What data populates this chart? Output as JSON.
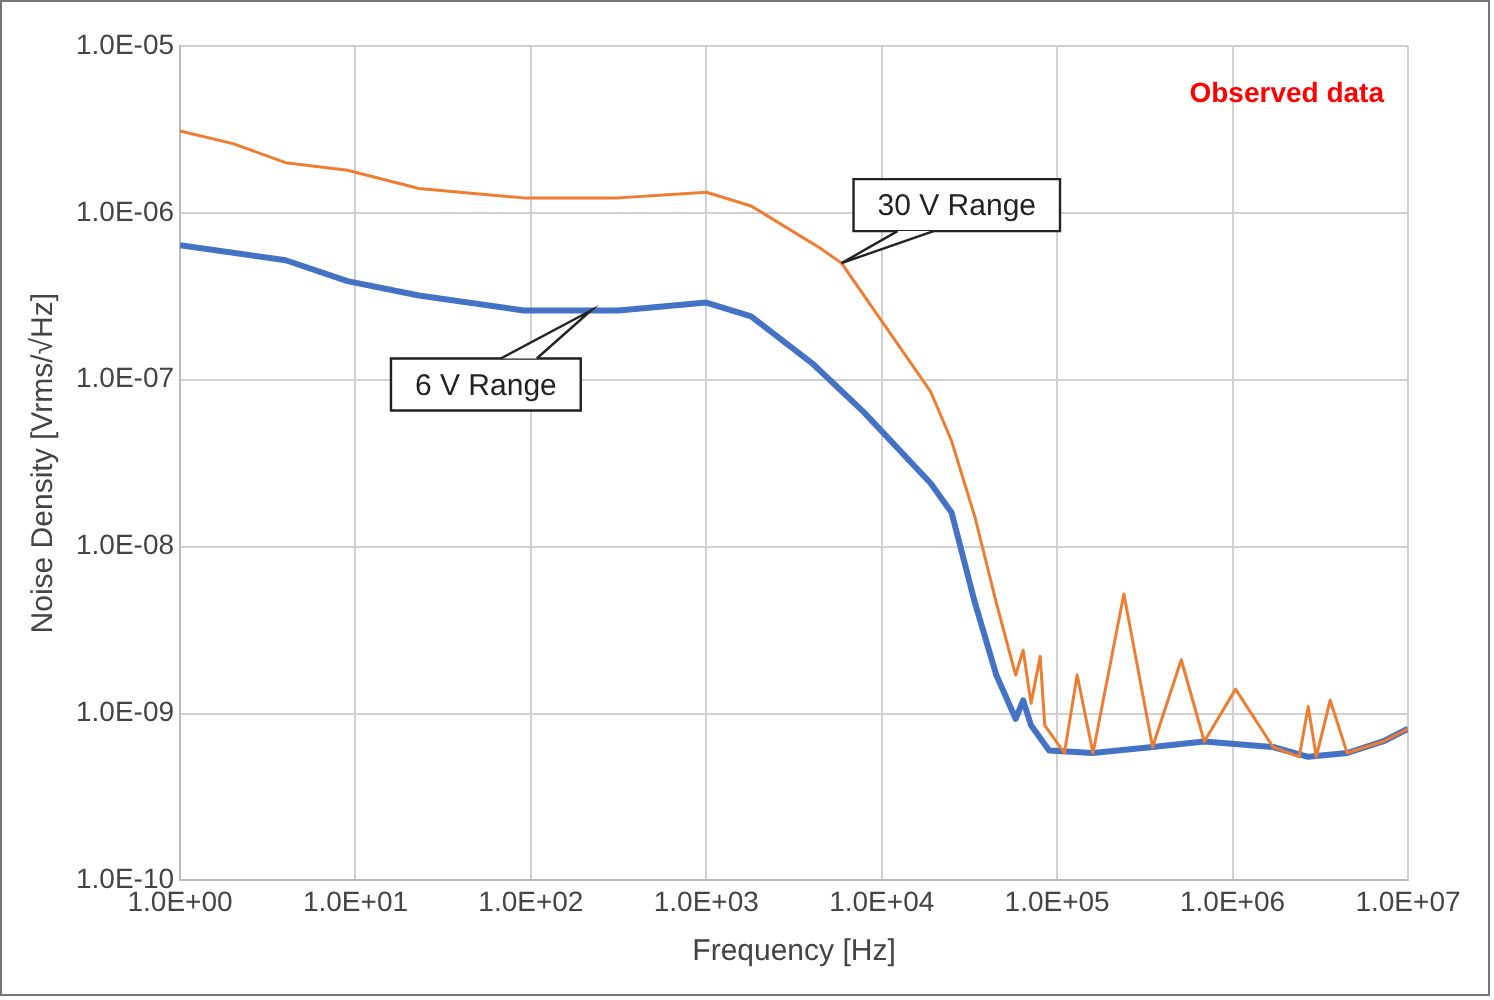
{
  "chart_data": {
    "type": "line",
    "xlabel": "Frequency [Hz]",
    "ylabel": "Noise Density [Vrms/√Hz]",
    "log": "xy",
    "grid": true,
    "legend": false,
    "marker": "none",
    "line_style": "solid",
    "xlim": [
      1,
      10000000
    ],
    "ylim": [
      1e-10,
      1e-05
    ],
    "xticks": [
      {
        "value": 1,
        "label": "1.0E+00"
      },
      {
        "value": 10,
        "label": "1.0E+01"
      },
      {
        "value": 100,
        "label": "1.0E+02"
      },
      {
        "value": 1000,
        "label": "1.0E+03"
      },
      {
        "value": 10000,
        "label": "1.0E+04"
      },
      {
        "value": 100000,
        "label": "1.0E+05"
      },
      {
        "value": 1000000,
        "label": "1.0E+06"
      },
      {
        "value": 10000000,
        "label": "1.0E+07"
      }
    ],
    "yticks": [
      {
        "value": 1e-10,
        "label": "1.0E-10"
      },
      {
        "value": 1e-09,
        "label": "1.0E-09"
      },
      {
        "value": 1e-08,
        "label": "1.0E-08"
      },
      {
        "value": 1e-07,
        "label": "1.0E-07"
      },
      {
        "value": 1e-06,
        "label": "1.0E-06"
      },
      {
        "value": 1e-05,
        "label": "1.0E-05"
      }
    ],
    "series": [
      {
        "color": "#ed7d31",
        "x": [
          1,
          2,
          4,
          9,
          23,
          91,
          316,
          1000,
          1800,
          4400,
          5900,
          19000,
          25000,
          34000,
          45000,
          58000,
          64000,
          71000,
          80000,
          85000,
          110000,
          130000,
          160000,
          240000,
          350000,
          510000,
          690000,
          1040000,
          1700000,
          2400000,
          2700000,
          3000000,
          3600000,
          4500000,
          7200000,
          10000000
        ],
        "values": [
          3.1e-06,
          2.6e-06,
          2e-06,
          1.8e-06,
          1.4e-06,
          1.23e-06,
          1.23e-06,
          1.33e-06,
          1.1e-06,
          6.2e-07,
          5e-07,
          8.5e-08,
          4.3e-08,
          1.5e-08,
          4.6e-09,
          1.7e-09,
          2.4e-09,
          1.15e-09,
          2.2e-09,
          8.5e-10,
          5.8e-10,
          1.7e-09,
          5.8e-10,
          5.2e-09,
          6.3e-10,
          2.1e-09,
          6.8e-10,
          1.4e-09,
          6.3e-10,
          5.5e-10,
          1.1e-09,
          5.5e-10,
          1.2e-09,
          5.8e-10,
          6.8e-10,
          8.1e-10
        ]
      },
      {
        "color": "#4472c4",
        "x": [
          1,
          4,
          9,
          23,
          91,
          316,
          1000,
          1800,
          4000,
          7900,
          19000,
          25000,
          34000,
          45000,
          58000,
          64000,
          71000,
          90000,
          160000,
          350000,
          690000,
          1700000,
          2700000,
          4500000,
          7200000,
          10000000
        ],
        "values": [
          6.4e-07,
          5.2e-07,
          3.9e-07,
          3.2e-07,
          2.6e-07,
          2.6e-07,
          2.9e-07,
          2.4e-07,
          1.26e-07,
          6.4e-08,
          2.4e-08,
          1.6e-08,
          4.6e-09,
          1.7e-09,
          9.3e-10,
          1.2e-09,
          8.5e-10,
          6e-10,
          5.8e-10,
          6.3e-10,
          6.8e-10,
          6.3e-10,
          5.5e-10,
          5.8e-10,
          6.8e-10,
          8.1e-10
        ]
      }
    ],
    "annotations": [
      {
        "text": "30 V Range",
        "x": 5900,
        "y": 5e-07
      },
      {
        "text": "6 V Range",
        "x": 220,
        "y": 2.6e-07
      },
      "Observed data"
    ]
  }
}
